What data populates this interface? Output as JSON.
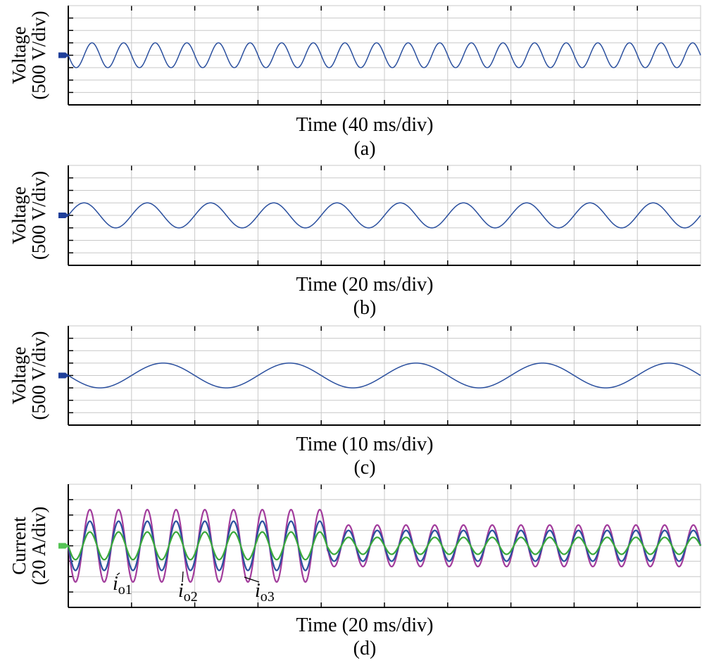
{
  "colors": {
    "grid": "#c8c8c8",
    "frame": "#000000",
    "blue": "#2a4f9e",
    "magenta": "#a23c9c",
    "green": "#3aa83a",
    "marker_blue": "#1f3f9a",
    "marker_green": "#55c455"
  },
  "chart_data": [
    {
      "type": "line",
      "panel_label": "(a)",
      "ylabel": [
        "Voltage",
        "(500 V/div)"
      ],
      "xlabel": "Time (40 ms/div)",
      "x_divisions": 10,
      "y_divisions": 8,
      "grid": true,
      "x_unit": "ms",
      "y_unit": "V",
      "xlim": [
        0,
        400
      ],
      "ylim": [
        -2000,
        2000
      ],
      "ground_marker": {
        "color": "blue",
        "y": 0
      },
      "series": [
        {
          "color": "blue",
          "waveform": "sine",
          "amplitude": 500,
          "frequency_hz": 50,
          "offset": 0,
          "phase_deg": 180
        }
      ]
    },
    {
      "type": "line",
      "panel_label": "(b)",
      "ylabel": [
        "Voltage",
        "(500 V/div)"
      ],
      "xlabel": "Time (20 ms/div)",
      "x_divisions": 10,
      "y_divisions": 8,
      "grid": true,
      "x_unit": "ms",
      "y_unit": "V",
      "xlim": [
        0,
        200
      ],
      "ylim": [
        -2000,
        2000
      ],
      "ground_marker": {
        "color": "blue",
        "y": 0
      },
      "series": [
        {
          "color": "blue",
          "waveform": "sine",
          "amplitude": 500,
          "frequency_hz": 50,
          "offset": 0,
          "phase_deg": 0
        }
      ]
    },
    {
      "type": "line",
      "panel_label": "(c)",
      "ylabel": [
        "Voltage",
        "(500 V/div)"
      ],
      "xlabel": "Time (10 ms/div)",
      "x_divisions": 10,
      "y_divisions": 8,
      "grid": true,
      "x_unit": "ms",
      "y_unit": "V",
      "xlim": [
        0,
        100
      ],
      "ylim": [
        -2000,
        2000
      ],
      "ground_marker": {
        "color": "blue",
        "y": 0
      },
      "series": [
        {
          "color": "blue",
          "waveform": "sine",
          "amplitude": 500,
          "frequency_hz": 50,
          "offset": 0,
          "phase_deg": 180
        }
      ]
    },
    {
      "type": "line",
      "panel_label": "(d)",
      "ylabel": [
        "Current",
        "(20 A/div)"
      ],
      "xlabel": "Time (20 ms/div)",
      "x_divisions": 10,
      "y_divisions": 8,
      "grid": true,
      "x_unit": "ms",
      "y_unit": "A",
      "xlim": [
        0,
        200
      ],
      "ylim": [
        -80,
        80
      ],
      "ground_marker": {
        "color": "green",
        "y": 0
      },
      "step_time": 82,
      "series": [
        {
          "name_base": "i",
          "name_sub": "o1",
          "color": "magenta",
          "waveform": "sine",
          "amplitude_before": 47,
          "amplitude_after": 27,
          "frequency_hz": 110,
          "offset": 0,
          "phase_deg": 180
        },
        {
          "name_base": "i",
          "name_sub": "o2",
          "color": "blue",
          "waveform": "sine",
          "amplitude_before": 32,
          "amplitude_after": 20,
          "frequency_hz": 110,
          "offset": 0,
          "phase_deg": 180
        },
        {
          "name_base": "i",
          "name_sub": "o3",
          "color": "green",
          "waveform": "sine",
          "amplitude_before": 18,
          "amplitude_after": 11,
          "frequency_hz": 110,
          "offset": 0,
          "phase_deg": 180
        }
      ],
      "annotations": [
        {
          "label_base": "i",
          "label_sub": "o1",
          "series_index": 0
        },
        {
          "label_base": "i",
          "label_sub": "o2",
          "series_index": 1
        },
        {
          "label_base": "i",
          "label_sub": "o3",
          "series_index": 2
        }
      ]
    }
  ]
}
